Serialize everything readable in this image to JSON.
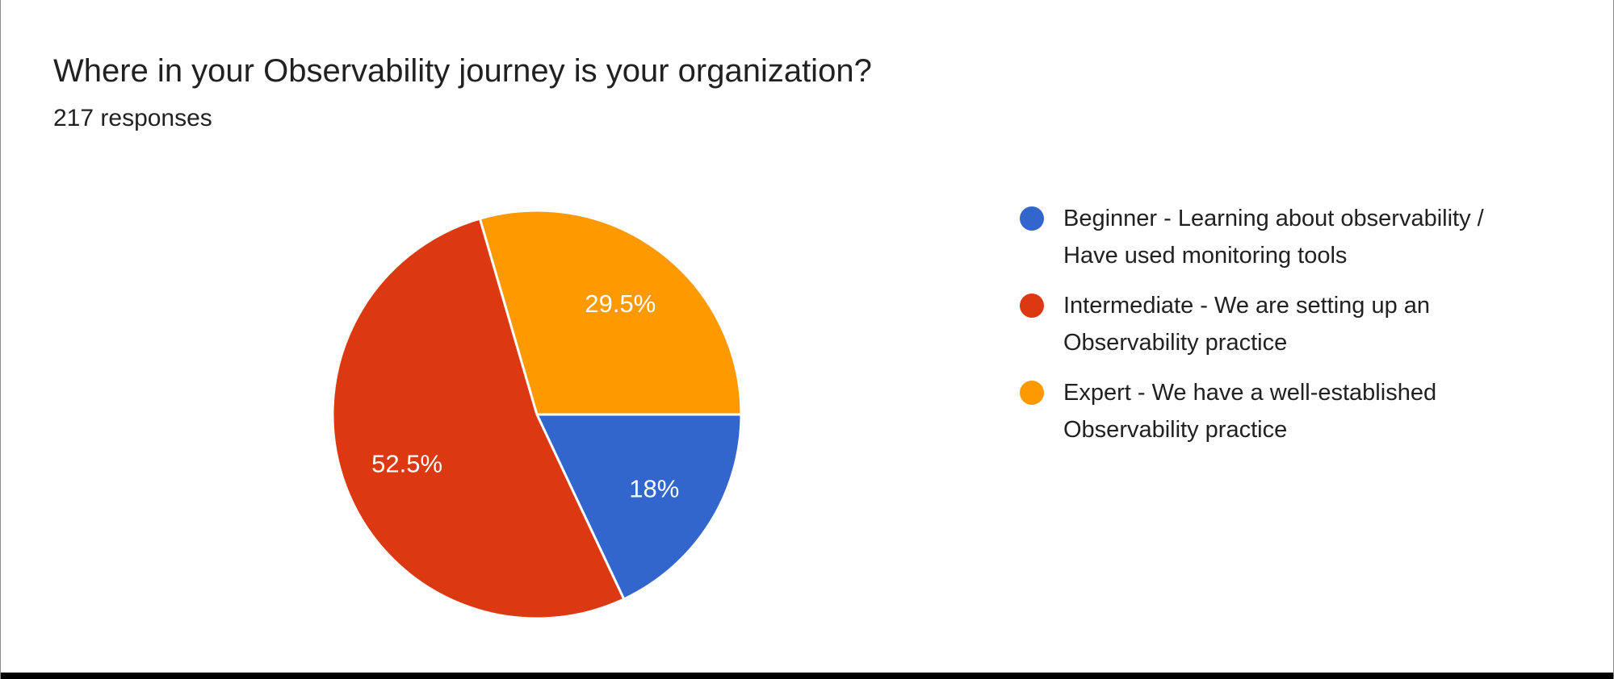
{
  "header": {
    "title": "Where in your Observability journey is your organization?",
    "responses": "217 responses"
  },
  "chart_data": {
    "type": "pie",
    "title": "Where in your Observability journey is your organization?",
    "subtitle": "217 responses",
    "total_responses": 217,
    "start_angle_deg": 90,
    "direction": "clockwise",
    "legend_position": "right",
    "labels": [
      "Beginner - Learning about observability / Have used monitoring tools",
      "Intermediate - We are setting up an Observability practice",
      "Expert - We have a well-established Observability practice"
    ],
    "values": [
      18,
      52.5,
      29.5
    ],
    "slice_labels": [
      "18%",
      "52.5%",
      "29.5%"
    ],
    "colors": [
      "#3366CC",
      "#DC3912",
      "#FF9900"
    ],
    "slice_names": [
      "beginner",
      "intermediate",
      "expert"
    ],
    "slice_label_color": "#ffffff",
    "slice_border_color": "#ffffff"
  },
  "legend": {
    "items": [
      {
        "name": "beginner",
        "color": "#3366CC",
        "lines": [
          "Beginner - Learning about observability /",
          "Have used monitoring tools"
        ]
      },
      {
        "name": "intermediate",
        "color": "#DC3912",
        "lines": [
          "Intermediate - We are setting up an",
          "Observability practice"
        ]
      },
      {
        "name": "expert",
        "color": "#FF9900",
        "lines": [
          "Expert - We have a well-established",
          "Observability practice"
        ]
      }
    ]
  }
}
